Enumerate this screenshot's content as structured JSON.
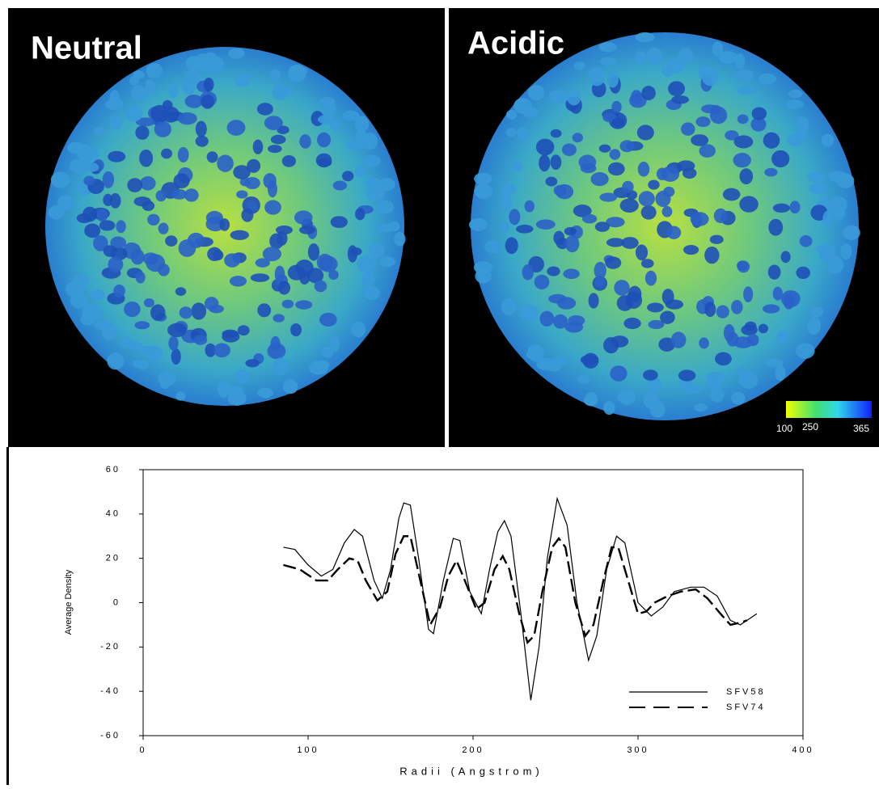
{
  "panels": [
    {
      "label": "Neutral"
    },
    {
      "label": "Acidic"
    }
  ],
  "colorbar": {
    "labels": [
      "100",
      "250",
      "365"
    ]
  },
  "chart_data": {
    "type": "line",
    "xlabel": "Radii (Angstrom)",
    "ylabel": "Average Density",
    "xlim": [
      0,
      400
    ],
    "xticks": [
      0,
      100,
      200,
      300,
      400
    ],
    "ylim": [
      -60,
      60
    ],
    "yticks": [
      -60,
      -40,
      -20,
      0,
      20,
      40,
      60
    ],
    "series": [
      {
        "name": "SFV58",
        "color": "#000000",
        "dash": "solid",
        "x": [
          85,
          92,
          100,
          108,
          115,
          122,
          128,
          133,
          140,
          145,
          150,
          155,
          158,
          162,
          167,
          173,
          176,
          182,
          188,
          192,
          198,
          205,
          210,
          215,
          219,
          223,
          229,
          235,
          240,
          245,
          251,
          257,
          263,
          270,
          275,
          281,
          287,
          292,
          300,
          308,
          315,
          322,
          332,
          340,
          348,
          356,
          362,
          368,
          372
        ],
        "values": [
          25,
          24,
          17,
          12,
          15,
          27,
          33,
          30,
          10,
          2,
          15,
          38,
          45,
          44,
          20,
          -12,
          -14,
          10,
          29,
          28,
          5,
          -5,
          15,
          32,
          37,
          30,
          -5,
          -44,
          -20,
          20,
          47,
          35,
          0,
          -26,
          -15,
          15,
          30,
          27,
          0,
          -6,
          -2,
          5,
          7,
          7,
          3,
          -8,
          -10,
          -7,
          -5
        ]
      },
      {
        "name": "SFV74",
        "color": "#000000",
        "dash": "dashed",
        "x": [
          85,
          95,
          105,
          112,
          118,
          125,
          130,
          135,
          142,
          148,
          153,
          158,
          162,
          168,
          174,
          180,
          185,
          190,
          195,
          202,
          207,
          213,
          218,
          222,
          228,
          233,
          237,
          242,
          248,
          252,
          256,
          262,
          268,
          273,
          279,
          284,
          288,
          292,
          300,
          305,
          310,
          318,
          326,
          335,
          342,
          350,
          356,
          362,
          366
        ],
        "values": [
          17,
          15,
          10,
          10,
          15,
          20,
          19,
          10,
          1,
          5,
          22,
          30,
          30,
          10,
          -10,
          -2,
          12,
          19,
          10,
          -3,
          0,
          15,
          21,
          15,
          -5,
          -18,
          -15,
          5,
          25,
          29,
          25,
          0,
          -15,
          -10,
          10,
          25,
          25,
          15,
          -5,
          -4,
          0,
          3,
          5,
          6,
          2,
          -5,
          -10,
          -9,
          -8
        ]
      }
    ]
  }
}
